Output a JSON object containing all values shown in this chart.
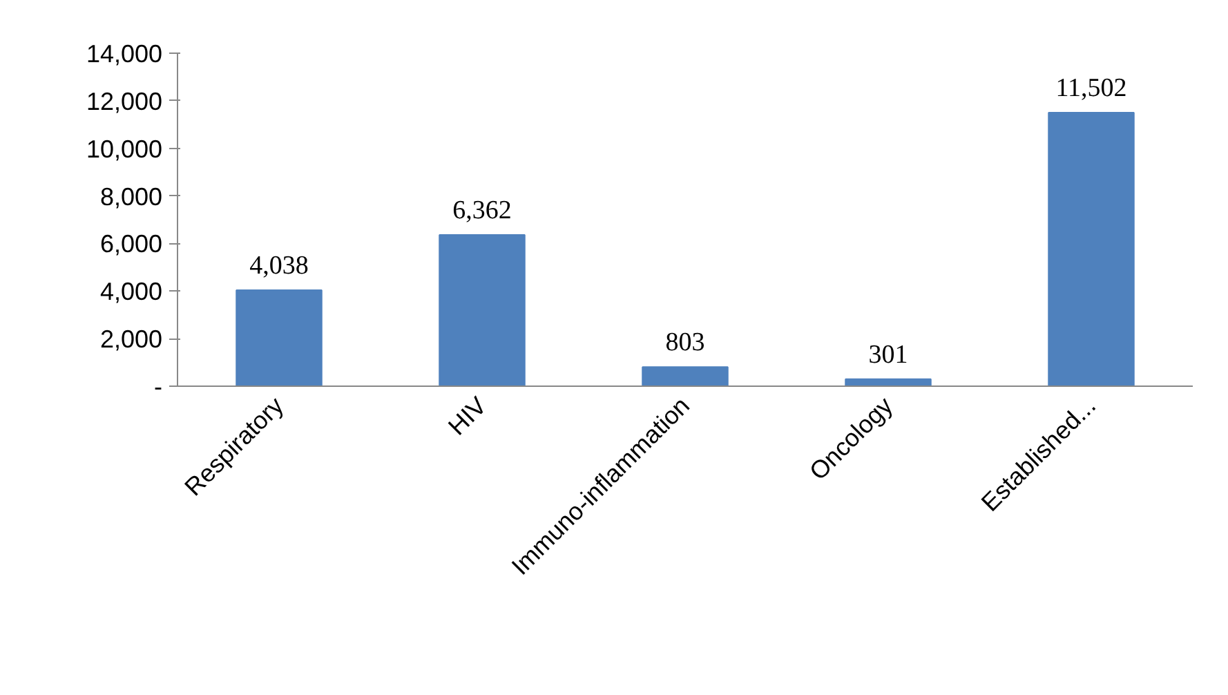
{
  "chart_data": {
    "type": "bar",
    "categories": [
      "Respiratory",
      "HIV",
      "Immuno-inflammation",
      "Oncology",
      "Established..."
    ],
    "values": [
      4038,
      6362,
      803,
      301,
      11502
    ],
    "value_labels": [
      "4,038",
      "6,362",
      "803",
      "301",
      "11,502"
    ],
    "color": "#4f81bd",
    "ylim": [
      0,
      14000
    ],
    "yticks": [
      {
        "value": 0,
        "label": "-"
      },
      {
        "value": 2000,
        "label": "2,000"
      },
      {
        "value": 4000,
        "label": "4,000"
      },
      {
        "value": 6000,
        "label": "6,000"
      },
      {
        "value": 8000,
        "label": "8,000"
      },
      {
        "value": 10000,
        "label": "10,000"
      },
      {
        "value": 12000,
        "label": "12,000"
      },
      {
        "value": 14000,
        "label": "14,000"
      }
    ],
    "grid": false,
    "legend": false
  }
}
